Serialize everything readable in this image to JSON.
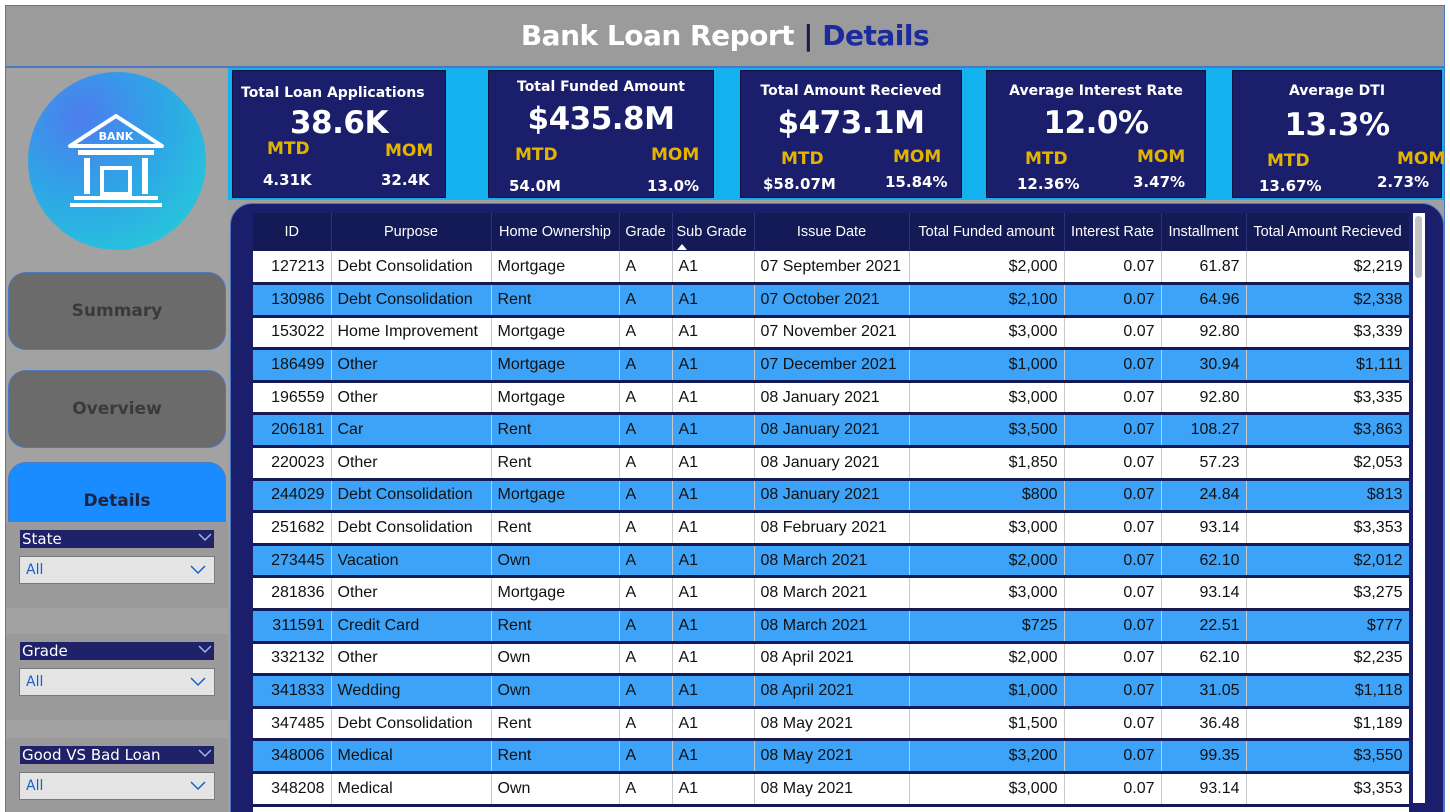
{
  "header": {
    "title_main": "Bank Loan Report",
    "title_sep": "|",
    "title_page": "Details"
  },
  "logo": {
    "icon": "bank-icon",
    "text": "BANK"
  },
  "nav": {
    "summary": "Summary",
    "overview": "Overview",
    "details": "Details",
    "active": "Details"
  },
  "filters": {
    "state": {
      "label": "State",
      "value": "All"
    },
    "grade": {
      "label": "Grade",
      "value": "All"
    },
    "loan_quality": {
      "label": "Good VS Bad Loan",
      "value": "All"
    }
  },
  "kpis": [
    {
      "title": "Total Loan  Applications",
      "value": "38.6K",
      "mtd_label": "MTD",
      "mom_label": "MOM",
      "mtd": "4.31K",
      "mom": "32.4K"
    },
    {
      "title": "Total Funded Amount",
      "value": "$435.8M",
      "mtd_label": "MTD",
      "mom_label": "MOM",
      "mtd": "54.0M",
      "mom": "13.0%"
    },
    {
      "title": "Total Amount Recieved",
      "value": "$473.1M",
      "mtd_label": "MTD",
      "mom_label": "MOM",
      "mtd": "$58.07M",
      "mom": "15.84%"
    },
    {
      "title": "Average Interest Rate",
      "value": "12.0%",
      "mtd_label": "MTD",
      "mom_label": "MOM",
      "mtd": "12.36%",
      "mom": "3.47%"
    },
    {
      "title": "Average DTI",
      "value": "13.3%",
      "mtd_label": "MTD",
      "mom_label": "MOM",
      "mtd": "13.67%",
      "mom": "2.73%"
    }
  ],
  "table": {
    "sorted_column": "Sub Grade",
    "columns": [
      "ID",
      "Purpose",
      "Home Ownership",
      "Grade",
      "Sub Grade",
      "Issue Date",
      "Total Funded amount",
      "Interest Rate",
      "Installment",
      "Total Amount Recieved"
    ],
    "rows": [
      [
        "127213",
        "Debt Consolidation",
        "Mortgage",
        "A",
        "A1",
        "07 September 2021",
        "$2,000",
        "0.07",
        "61.87",
        "$2,219"
      ],
      [
        "130986",
        "Debt Consolidation",
        "Rent",
        "A",
        "A1",
        "07 October 2021",
        "$2,100",
        "0.07",
        "64.96",
        "$2,338"
      ],
      [
        "153022",
        "Home Improvement",
        "Mortgage",
        "A",
        "A1",
        "07 November 2021",
        "$3,000",
        "0.07",
        "92.80",
        "$3,339"
      ],
      [
        "186499",
        "Other",
        "Mortgage",
        "A",
        "A1",
        "07 December 2021",
        "$1,000",
        "0.07",
        "30.94",
        "$1,111"
      ],
      [
        "196559",
        "Other",
        "Mortgage",
        "A",
        "A1",
        "08 January 2021",
        "$3,000",
        "0.07",
        "92.80",
        "$3,335"
      ],
      [
        "206181",
        "Car",
        "Rent",
        "A",
        "A1",
        "08 January 2021",
        "$3,500",
        "0.07",
        "108.27",
        "$3,863"
      ],
      [
        "220023",
        "Other",
        "Rent",
        "A",
        "A1",
        "08 January 2021",
        "$1,850",
        "0.07",
        "57.23",
        "$2,053"
      ],
      [
        "244029",
        "Debt Consolidation",
        "Mortgage",
        "A",
        "A1",
        "08 January 2021",
        "$800",
        "0.07",
        "24.84",
        "$813"
      ],
      [
        "251682",
        "Debt Consolidation",
        "Rent",
        "A",
        "A1",
        "08 February 2021",
        "$3,000",
        "0.07",
        "93.14",
        "$3,353"
      ],
      [
        "273445",
        "Vacation",
        "Own",
        "A",
        "A1",
        "08 March 2021",
        "$2,000",
        "0.07",
        "62.10",
        "$2,012"
      ],
      [
        "281836",
        "Other",
        "Mortgage",
        "A",
        "A1",
        "08 March 2021",
        "$3,000",
        "0.07",
        "93.14",
        "$3,275"
      ],
      [
        "311591",
        "Credit Card",
        "Rent",
        "A",
        "A1",
        "08 March 2021",
        "$725",
        "0.07",
        "22.51",
        "$777"
      ],
      [
        "332132",
        "Other",
        "Own",
        "A",
        "A1",
        "08 April 2021",
        "$2,000",
        "0.07",
        "62.10",
        "$2,235"
      ],
      [
        "341833",
        "Wedding",
        "Own",
        "A",
        "A1",
        "08 April 2021",
        "$1,000",
        "0.07",
        "31.05",
        "$1,118"
      ],
      [
        "347485",
        "Debt Consolidation",
        "Rent",
        "A",
        "A1",
        "08 May 2021",
        "$1,500",
        "0.07",
        "36.48",
        "$1,189"
      ],
      [
        "348006",
        "Medical",
        "Rent",
        "A",
        "A1",
        "08 May 2021",
        "$3,200",
        "0.07",
        "99.35",
        "$3,550"
      ],
      [
        "348208",
        "Medical",
        "Own",
        "A",
        "A1",
        "08 May 2021",
        "$3,000",
        "0.07",
        "93.14",
        "$3,353"
      ]
    ]
  },
  "colors": {
    "accent_blue": "#1c2a9b",
    "card_navy": "#1b1f6b",
    "kpi_strip": "#13b2ee",
    "row_highlight": "#3da3f8",
    "kpi_label_gold": "#e2b400",
    "active_nav": "#1a8cff"
  }
}
